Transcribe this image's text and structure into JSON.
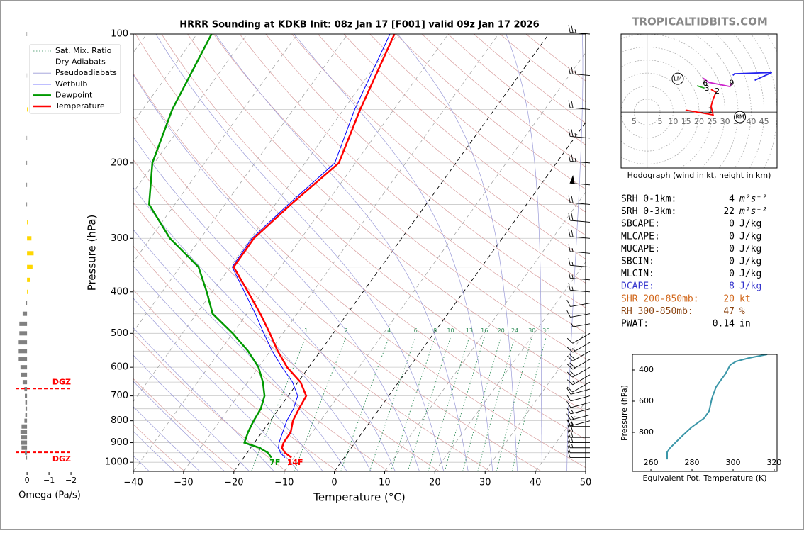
{
  "header": {
    "title": "HRRR Sounding at KDKB Init: 08z Jan 17 [F001] valid 09z Jan 17 2026",
    "watermark": "TROPICALTIDBITS.COM"
  },
  "chart_data": [
    {
      "type": "skewt",
      "xlabel": "Temperature (°C)",
      "ylabel": "Pressure (hPa)",
      "xlim": [
        -40,
        50
      ],
      "ylim": [
        1050,
        100
      ],
      "log_y": true,
      "xticks": [
        {
          "value": -40,
          "label": "−40"
        },
        {
          "value": -30,
          "label": "−30"
        },
        {
          "value": -20,
          "label": "−20"
        },
        {
          "value": -10,
          "label": "−10"
        },
        0,
        10,
        20,
        30,
        40,
        50
      ],
      "yticks": [
        1000,
        900,
        800,
        700,
        600,
        500,
        400,
        300,
        200,
        100
      ],
      "pressure": [
        975,
        950,
        925,
        900,
        850,
        800,
        750,
        700,
        650,
        600,
        550,
        500,
        450,
        400,
        350,
        300,
        250,
        200,
        150,
        100
      ],
      "series": [
        {
          "name": "Wetbulb",
          "color": "#0000ff",
          "values": [
            -11.8,
            -13.4,
            -14.5,
            -15.1,
            -15.9,
            -16.7,
            -17.1,
            -18.1,
            -21.1,
            -25.3,
            -29.6,
            -33.8,
            -38.3,
            -43.6,
            -49.6,
            -49.8,
            -47.4,
            -44.1,
            -47.8,
            -51.6
          ]
        },
        {
          "name": "Dewpoint",
          "color": "#009900",
          "values": [
            -14.5,
            -15.9,
            -18.3,
            -22.0,
            -22.8,
            -23.3,
            -23.6,
            -24.7,
            -27.0,
            -30.0,
            -34.4,
            -40.0,
            -46.8,
            -51.1,
            -56.3,
            -66.1,
            -75.1,
            -80.4,
            -84.1,
            -87.1
          ],
          "surface_label": "7F"
        },
        {
          "name": "Temperature",
          "color": "#ff0000",
          "values": [
            -10.5,
            -12.5,
            -13.8,
            -14.2,
            -14.3,
            -15.5,
            -16.0,
            -16.4,
            -19.5,
            -24.3,
            -28.5,
            -32.6,
            -37.3,
            -42.9,
            -49.3,
            -49.4,
            -46.9,
            -43.3,
            -46.7,
            -50.7
          ],
          "surface_label": "14F"
        }
      ],
      "reference_lines": [
        {
          "name": "Sat. Mix. Ratio",
          "color": "#2e8b57"
        },
        {
          "name": "Dry Adiabats",
          "color": "#d9a0a0"
        },
        {
          "name": "Pseudoadiabats",
          "color": "#9a9ad8"
        }
      ],
      "mixing_ratio_labels": [
        1,
        2,
        4,
        6,
        8,
        10,
        13,
        16,
        20,
        24,
        30,
        36
      ],
      "wind": {
        "pressure": [
          975,
          950,
          925,
          900,
          875,
          850,
          825,
          800,
          775,
          750,
          725,
          700,
          675,
          650,
          625,
          600,
          575,
          550,
          525,
          500,
          475,
          450,
          425,
          400,
          375,
          350,
          325,
          300,
          275,
          250,
          225,
          200,
          175,
          150,
          125,
          100
        ],
        "speed": [
          10,
          10,
          15,
          20,
          20,
          20,
          20,
          15,
          15,
          15,
          10,
          10,
          10,
          10,
          15,
          20,
          20,
          20,
          15,
          10,
          5,
          10,
          10,
          15,
          15,
          15,
          15,
          20,
          20,
          20,
          50,
          25,
          25,
          20,
          25,
          25
        ],
        "direction": [
          270,
          270,
          270,
          270,
          270,
          270,
          270,
          255,
          255,
          255,
          255,
          255,
          255,
          240,
          240,
          240,
          240,
          240,
          240,
          240,
          260,
          260,
          260,
          275,
          275,
          275,
          275,
          275,
          275,
          275,
          275,
          275,
          275,
          275,
          275,
          275
        ]
      },
      "legend": "upper left"
    },
    {
      "type": "bar",
      "xlabel": "Omega (Pa/s)",
      "xlim": [
        0.52,
        -2.32
      ],
      "ylim": [
        1050,
        100
      ],
      "log_y": true,
      "xticks": [
        0,
        {
          "value": -1,
          "label": "−1"
        },
        {
          "value": -2,
          "label": "−2"
        }
      ],
      "pressure": [
        975,
        950,
        925,
        900,
        875,
        850,
        825,
        800,
        775,
        750,
        725,
        700,
        675,
        650,
        625,
        600,
        575,
        550,
        525,
        500,
        475,
        450,
        425,
        400,
        375,
        350,
        325,
        300,
        275,
        250,
        225,
        200,
        175,
        150,
        125,
        100
      ],
      "values": [
        0.05,
        0.1,
        0.25,
        0.27,
        0.28,
        0.3,
        0.25,
        0.12,
        0.08,
        0.07,
        0.08,
        0.1,
        0.12,
        0.2,
        0.28,
        0.3,
        0.38,
        0.38,
        0.38,
        0.35,
        0.35,
        0.2,
        0.05,
        -0.05,
        -0.15,
        -0.25,
        -0.3,
        -0.2,
        -0.05,
        0.03,
        0.03,
        0.03,
        0.02,
        -0.03,
        0.01,
        0.02
      ],
      "positive_color": "#808080",
      "negative_color": "#ffd700",
      "dgz": {
        "label": "DGZ",
        "color": "#ff0000",
        "pressures": [
          673,
          948
        ]
      }
    },
    {
      "type": "hodograph",
      "caption": "Hodograph (wind in kt, height in km)",
      "xlim": [
        -10,
        50
      ],
      "ylim": [
        -21.5,
        30
      ],
      "xticks": [
        {
          "value": -5,
          "label": "5"
        },
        5,
        10,
        15,
        20,
        25,
        30,
        35,
        40,
        45
      ],
      "series": [
        {
          "color": "#ff0000",
          "u": [
            14.8,
            25.4,
            24.6,
            25.4,
            26.5,
            24.6
          ],
          "v": [
            0.8,
            -1.1,
            2.2,
            4.9,
            7.6,
            8.7
          ]
        },
        {
          "color": "#22aa22",
          "u": [
            22.1,
            19.2
          ],
          "v": [
            9.2,
            10.1
          ]
        },
        {
          "color": "#cc22cc",
          "u": [
            21.6,
            23.8,
            31.9,
            32.5
          ],
          "v": [
            13.0,
            11.4,
            9.8,
            11.1
          ]
        },
        {
          "color": "#2222ee",
          "u": [
            33.0,
            33.6,
            48.0,
            41.4
          ],
          "v": [
            14.1,
            14.7,
            15.2,
            12.2
          ]
        }
      ],
      "height_labels": [
        {
          "label": "1",
          "u": 24.3,
          "v": 0.5
        },
        {
          "label": "2",
          "u": 27.0,
          "v": 7.9
        },
        {
          "label": "3",
          "u": 23.0,
          "v": 9.0
        },
        {
          "label": "6",
          "u": 22.4,
          "v": 10.9
        },
        {
          "label": "9",
          "u": 32.5,
          "v": 11.1
        }
      ],
      "storm_motion": [
        {
          "label": "LM",
          "u": 11.8,
          "v": 12.8
        },
        {
          "label": "RM",
          "u": 35.7,
          "v": -1.9
        }
      ]
    },
    {
      "type": "line",
      "xlabel": "Equivalent Pot. Temperature (K)",
      "ylabel": "Pressure (hPa)",
      "xlim": [
        251,
        321.4
      ],
      "ylim": [
        1050,
        300
      ],
      "log_y": false,
      "xticks": [
        260,
        280,
        300,
        320
      ],
      "yticks": [
        400,
        600,
        800
      ],
      "color": "#3a96a8",
      "pressure": [
        973,
        927,
        900,
        832,
        768,
        709,
        664,
        582,
        509,
        464,
        427,
        368,
        345,
        323,
        300
      ],
      "values": [
        267.9,
        267.9,
        269.3,
        274.5,
        279.7,
        285.9,
        288.3,
        289.7,
        291.7,
        294.1,
        296.2,
        298.6,
        301.4,
        307.6,
        316.6
      ]
    }
  ],
  "stats": {
    "rows": [
      {
        "label": "SRH 0-1km:",
        "value": 4,
        "unit": "m²s⁻²"
      },
      {
        "label": "SRH 0-3km:",
        "value": 22,
        "unit": "m²s⁻²"
      },
      {
        "label": "SBCAPE:",
        "value": 0,
        "unit": "J/kg"
      },
      {
        "label": "MLCAPE:",
        "value": 0,
        "unit": "J/kg"
      },
      {
        "label": "MUCAPE:",
        "value": 0,
        "unit": "J/kg"
      },
      {
        "label": "SBCIN:",
        "value": 0,
        "unit": "J/kg"
      },
      {
        "label": "MLCIN:",
        "value": 0,
        "unit": "J/kg"
      },
      {
        "label": "DCAPE:",
        "value": 8,
        "unit": "J/kg",
        "color": "#3333cc"
      },
      {
        "label": "SHR 200-850mb:",
        "value": 20,
        "unit": "kt",
        "color": "#d2691e"
      },
      {
        "label": "RH 300-850mb:",
        "value": 47,
        "unit": "%",
        "color": "#8b4513"
      },
      {
        "label": "PWAT:",
        "value": 0.14,
        "unit": "in"
      }
    ]
  }
}
